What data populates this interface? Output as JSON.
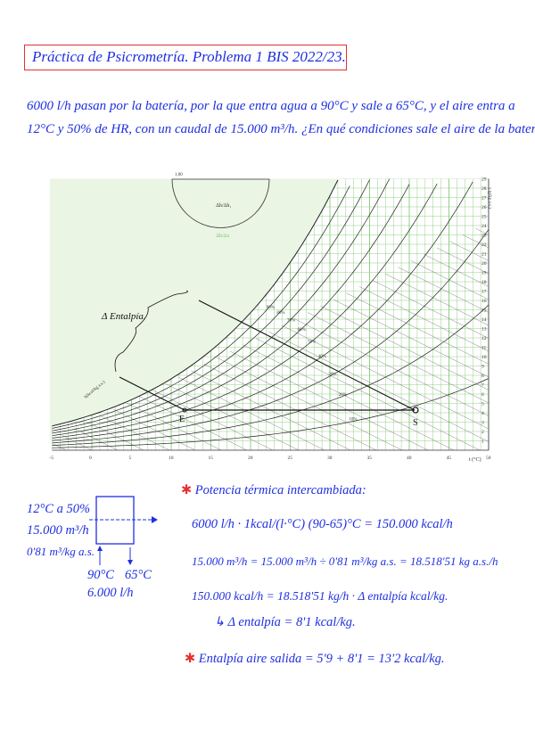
{
  "title": "Práctica de Psicrometría. Problema 1 BIS 2022/23.",
  "problem": {
    "line1": "6000 l/h pasan por la batería, por la que entra agua a 90°C y sale a 65°C, y el aire entra a",
    "line2": "12°C y 50% de HR, con un caudal de 15.000 m³/h. ¿En qué condiciones sale el aire de la batería?"
  },
  "chart": {
    "delta_label": "Δ Entalpía.",
    "point_in": "E",
    "point_out": "S",
    "x_unit": "t (°C)",
    "y_unit": "x (g/kg a.s.)",
    "enthalpy_scale_label": "h(kcal/kg a.s.)",
    "protractor_top": "1,00",
    "protractor_labels": [
      "Δh/Δh₁",
      "Δh/Δx"
    ],
    "rh_labels": [
      "90%",
      "80%",
      "70%",
      "60%",
      "50%",
      "40%",
      "30%",
      "20%",
      "10%"
    ],
    "colors": {
      "grid": "#7cc36a",
      "curves": "#222222",
      "process": "#111111"
    }
  },
  "chart_data": {
    "type": "line",
    "xlabel": "t (°C)",
    "ylabel": "x (g/kg a.s.)",
    "xlim": [
      -5,
      50
    ],
    "ylim": [
      0,
      29
    ],
    "x_ticks": [
      -5,
      0,
      5,
      10,
      15,
      20,
      25,
      30,
      35,
      40,
      45,
      50
    ],
    "y_ticks": [
      1,
      2,
      3,
      4,
      5,
      6,
      7,
      8,
      9,
      10,
      11,
      12,
      13,
      14,
      15,
      16,
      17,
      18,
      19,
      20,
      21,
      22,
      23,
      24,
      25,
      26,
      27,
      28,
      29
    ],
    "rh_curves": [
      10,
      20,
      30,
      40,
      50,
      60,
      70,
      80,
      90,
      100
    ],
    "points": [
      {
        "label": "E",
        "t": 12,
        "x": 4.3
      },
      {
        "label": "S",
        "t": 41,
        "x": 4.3
      }
    ],
    "grid": true
  },
  "diagram": {
    "in_air": "12°C a 50%",
    "flow": "15.000 m³/h",
    "volume": "0'81 m³/kg a.s.",
    "water_in": "90°C",
    "water_out": "65°C",
    "water_flow": "6.000 l/h"
  },
  "calc": {
    "heading": "Potencia térmica intercambiada:",
    "l1": "6000 l/h · 1kcal/(l·°C) (90-65)°C = 150.000 kcal/h",
    "l2": "15.000 m³/h = 15.000 m³/h ÷ 0'81 m³/kg a.s. = 18.518'51 kg a.s./h",
    "l3": "150.000 kcal/h = 18.518'51 kg/h · Δ entalpía kcal/kg.",
    "l4": "↳ Δ entalpía = 8'1 kcal/kg.",
    "l5": "Entalpía aire salida = 5'9 + 8'1 = 13'2 kcal/kg.",
    "star": "✱"
  }
}
